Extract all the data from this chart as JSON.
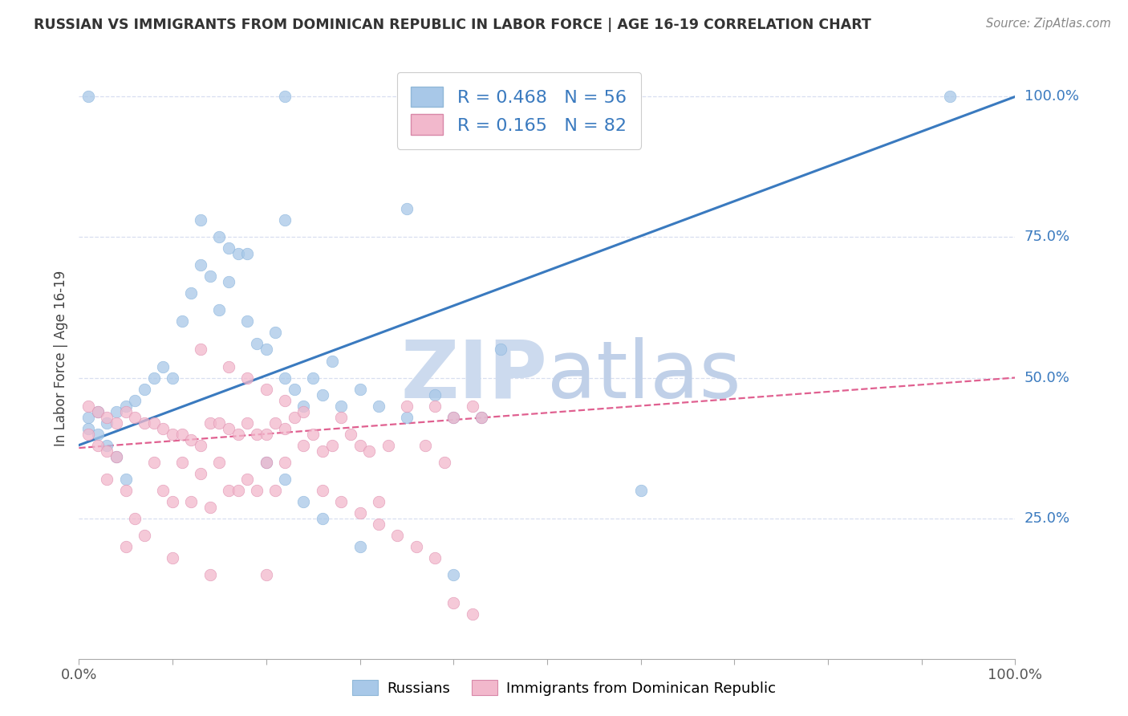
{
  "title": "RUSSIAN VS IMMIGRANTS FROM DOMINICAN REPUBLIC IN LABOR FORCE | AGE 16-19 CORRELATION CHART",
  "source": "Source: ZipAtlas.com",
  "ylabel": "In Labor Force | Age 16-19",
  "blue_R": 0.468,
  "blue_N": 56,
  "pink_R": 0.165,
  "pink_N": 82,
  "blue_color": "#a8c8e8",
  "pink_color": "#f2b8cc",
  "blue_line_color": "#3a7abf",
  "pink_line_color": "#e06090",
  "grid_color": "#d8dff0",
  "label_color": "#3a7abf",
  "watermark_zip_color": "#ccdaee",
  "watermark_atlas_color": "#c8d8ee",
  "legend_label_blue": "Russians",
  "legend_label_pink": "Immigrants from Dominican Republic",
  "blue_line_x0": 0.0,
  "blue_line_y0": 0.38,
  "blue_line_x1": 1.0,
  "blue_line_y1": 1.0,
  "pink_line_x0": 0.0,
  "pink_line_y0": 0.375,
  "pink_line_x1": 1.0,
  "pink_line_y1": 0.5,
  "ymin": 0.0,
  "ymax": 1.07,
  "xmin": 0.0,
  "xmax": 1.0,
  "blue_x": [
    0.01,
    0.01,
    0.02,
    0.02,
    0.03,
    0.03,
    0.04,
    0.04,
    0.05,
    0.05,
    0.06,
    0.07,
    0.08,
    0.09,
    0.1,
    0.11,
    0.12,
    0.13,
    0.14,
    0.15,
    0.16,
    0.17,
    0.18,
    0.19,
    0.2,
    0.21,
    0.22,
    0.23,
    0.24,
    0.25,
    0.26,
    0.27,
    0.28,
    0.3,
    0.32,
    0.35,
    0.38,
    0.4,
    0.43,
    0.45,
    0.22,
    0.35,
    0.13,
    0.15,
    0.16,
    0.18,
    0.2,
    0.22,
    0.24,
    0.26,
    0.6,
    0.01,
    0.22,
    0.3,
    0.4,
    0.93
  ],
  "blue_y": [
    0.43,
    0.41,
    0.44,
    0.4,
    0.42,
    0.38,
    0.44,
    0.36,
    0.45,
    0.32,
    0.46,
    0.48,
    0.5,
    0.52,
    0.5,
    0.6,
    0.65,
    0.7,
    0.68,
    0.62,
    0.67,
    0.72,
    0.6,
    0.56,
    0.55,
    0.58,
    0.5,
    0.48,
    0.45,
    0.5,
    0.47,
    0.53,
    0.45,
    0.48,
    0.45,
    0.43,
    0.47,
    0.43,
    0.43,
    0.55,
    0.78,
    0.8,
    0.78,
    0.75,
    0.73,
    0.72,
    0.35,
    0.32,
    0.28,
    0.25,
    0.3,
    1.0,
    1.0,
    0.2,
    0.15,
    1.0
  ],
  "pink_x": [
    0.01,
    0.01,
    0.02,
    0.02,
    0.03,
    0.03,
    0.03,
    0.04,
    0.04,
    0.05,
    0.05,
    0.06,
    0.06,
    0.07,
    0.07,
    0.08,
    0.08,
    0.09,
    0.09,
    0.1,
    0.1,
    0.11,
    0.11,
    0.12,
    0.12,
    0.13,
    0.13,
    0.14,
    0.14,
    0.15,
    0.15,
    0.16,
    0.16,
    0.17,
    0.17,
    0.18,
    0.18,
    0.19,
    0.19,
    0.2,
    0.2,
    0.21,
    0.21,
    0.22,
    0.22,
    0.23,
    0.24,
    0.25,
    0.26,
    0.27,
    0.28,
    0.29,
    0.3,
    0.31,
    0.32,
    0.33,
    0.35,
    0.37,
    0.38,
    0.39,
    0.4,
    0.42,
    0.43,
    0.13,
    0.16,
    0.18,
    0.2,
    0.22,
    0.24,
    0.26,
    0.28,
    0.3,
    0.32,
    0.34,
    0.36,
    0.38,
    0.4,
    0.42,
    0.2,
    0.14,
    0.1,
    0.05
  ],
  "pink_y": [
    0.45,
    0.4,
    0.44,
    0.38,
    0.43,
    0.37,
    0.32,
    0.42,
    0.36,
    0.44,
    0.3,
    0.43,
    0.25,
    0.42,
    0.22,
    0.42,
    0.35,
    0.41,
    0.3,
    0.4,
    0.28,
    0.4,
    0.35,
    0.39,
    0.28,
    0.38,
    0.33,
    0.42,
    0.27,
    0.42,
    0.35,
    0.41,
    0.3,
    0.4,
    0.3,
    0.42,
    0.32,
    0.4,
    0.3,
    0.4,
    0.35,
    0.42,
    0.3,
    0.41,
    0.35,
    0.43,
    0.38,
    0.4,
    0.37,
    0.38,
    0.43,
    0.4,
    0.38,
    0.37,
    0.28,
    0.38,
    0.45,
    0.38,
    0.45,
    0.35,
    0.43,
    0.45,
    0.43,
    0.55,
    0.52,
    0.5,
    0.48,
    0.46,
    0.44,
    0.3,
    0.28,
    0.26,
    0.24,
    0.22,
    0.2,
    0.18,
    0.1,
    0.08,
    0.15,
    0.15,
    0.18,
    0.2
  ]
}
